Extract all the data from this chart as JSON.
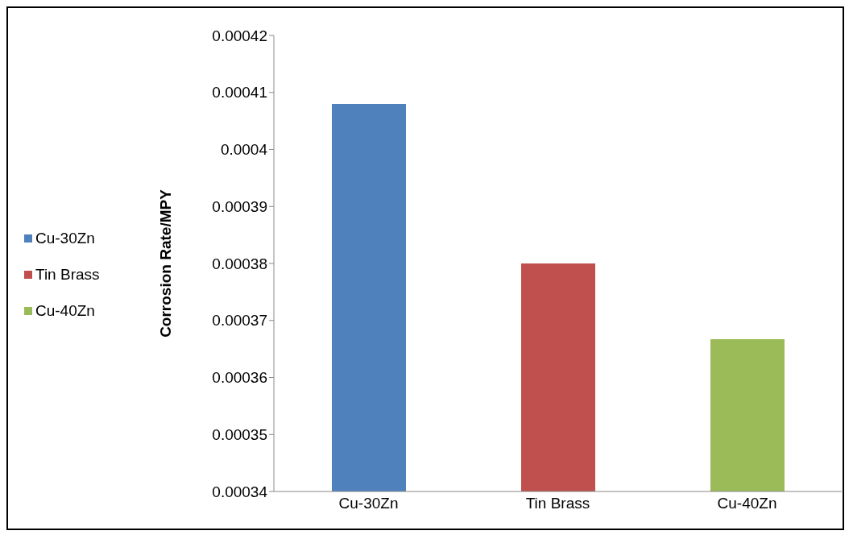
{
  "chart_data": {
    "type": "bar",
    "ylabel": "Corrosion Rate/MPY",
    "categories": [
      "Cu-30Zn",
      "Tin Brass",
      "Cu-40Zn"
    ],
    "series": [
      {
        "name": "Cu-30Zn",
        "color": "#4f81bd",
        "values": [
          0.000408,
          null,
          null
        ]
      },
      {
        "name": "Tin Brass",
        "color": "#c0504d",
        "values": [
          null,
          0.00038,
          null
        ]
      },
      {
        "name": "Cu-40Zn",
        "color": "#9bbb59",
        "values": [
          null,
          null,
          0.0003667
        ]
      }
    ],
    "ylim": [
      0.00034,
      0.00042
    ],
    "yticks": [
      0.00034,
      0.00035,
      0.00036,
      0.00037,
      0.00038,
      0.00039,
      0.0004,
      0.00041,
      0.00042
    ],
    "grid": false,
    "legend": "left"
  }
}
